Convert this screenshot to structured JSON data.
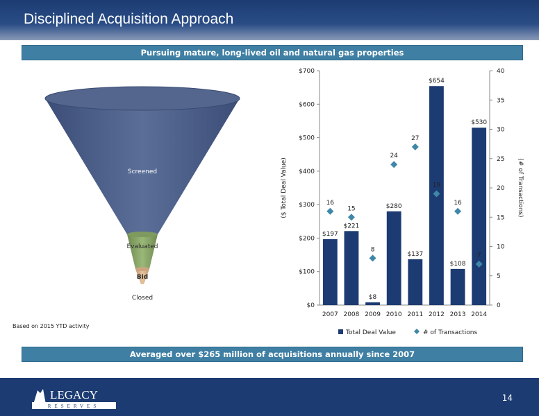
{
  "slide": {
    "title": "Disciplined Acquisition Approach",
    "top_banner": "Pursuing mature, long-lived oil and natural gas properties",
    "footnote": "Based on 2015 YTD activity",
    "bottom_banner": "Averaged over $265 million of acquisitions annually since 2007",
    "page_number": "14"
  },
  "funnel": {
    "stages": [
      "Screened",
      "Evaluated",
      "Bid",
      "Closed"
    ],
    "colors": [
      "#4a5d88",
      "#8ca66a",
      "#d8b48e"
    ]
  },
  "logo": {
    "name": "LEGACY",
    "tagline": "RESERVES"
  },
  "chart_data": {
    "type": "bar",
    "categories": [
      "2007",
      "2008",
      "2009",
      "2010",
      "2011",
      "2012",
      "2013",
      "2014"
    ],
    "series": [
      {
        "name": "Total Deal Value",
        "type": "bar",
        "axis": "left",
        "color": "#1c3b72",
        "values": [
          197,
          221,
          8,
          280,
          137,
          654,
          108,
          530
        ],
        "labels": [
          "$197",
          "$221",
          "$8",
          "$280",
          "$137",
          "$654",
          "$108",
          "$530"
        ]
      },
      {
        "name": "# of Transactions",
        "type": "scatter",
        "axis": "right",
        "color": "#3f87a8",
        "values": [
          16,
          15,
          8,
          24,
          27,
          19,
          16,
          7
        ],
        "labels": [
          "16",
          "15",
          "8",
          "24",
          "27",
          "19",
          "16",
          "7"
        ]
      }
    ],
    "ylabel": "($ Total Deal Value)",
    "y2label": "(# of Transactions)",
    "ylim": [
      0,
      700
    ],
    "y2lim": [
      0,
      40
    ],
    "yticks": [
      "$0",
      "$100",
      "$200",
      "$300",
      "$400",
      "$500",
      "$600",
      "$700"
    ],
    "y2ticks": [
      "0",
      "5",
      "10",
      "15",
      "20",
      "25",
      "30",
      "35",
      "40"
    ],
    "legend_position": "bottom",
    "grid": false
  }
}
